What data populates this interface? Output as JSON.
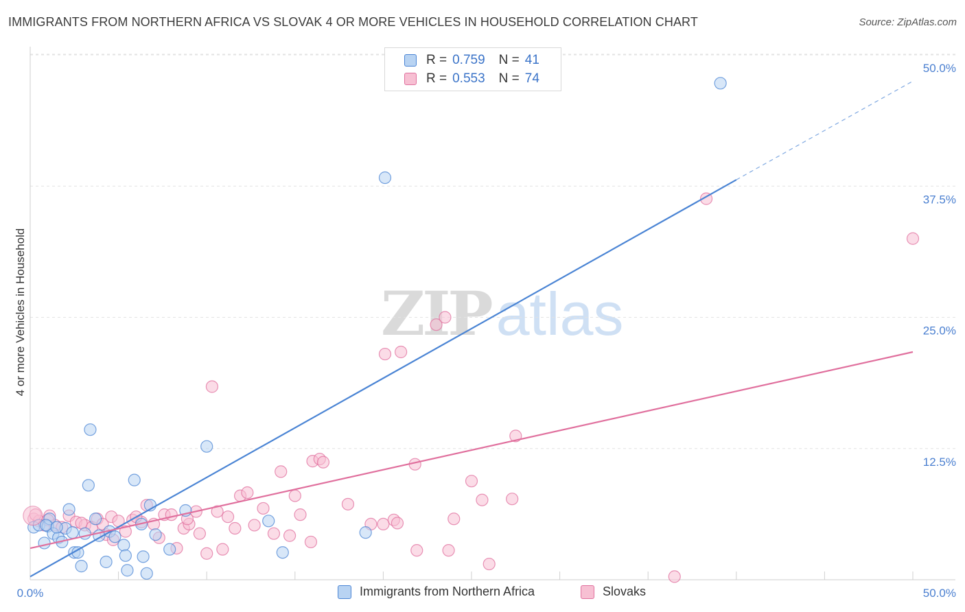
{
  "chart_data": {
    "type": "scatter",
    "title": "IMMIGRANTS FROM NORTHERN AFRICA VS SLOVAK 4 OR MORE VEHICLES IN HOUSEHOLD CORRELATION CHART",
    "source": "Source: ZipAtlas.com",
    "xlabel": "",
    "ylabel": "4 or more Vehicles in Household",
    "xlim": [
      0,
      50
    ],
    "ylim": [
      0,
      50
    ],
    "x_tick_labels": [
      "0.0%",
      "50.0%"
    ],
    "y_ticks": [
      {
        "value": 12.5,
        "label": "12.5%"
      },
      {
        "value": 25.0,
        "label": "25.0%"
      },
      {
        "value": 37.5,
        "label": "37.5%"
      },
      {
        "value": 50.0,
        "label": "50.0%"
      }
    ],
    "legend_position": "top-center",
    "watermark": {
      "zip": "ZIP",
      "atlas": "atlas"
    },
    "series": [
      {
        "name": "Immigrants from Northern Africa",
        "color": "#4a84d4",
        "fill": "#b8d3f2",
        "R": "0.759",
        "N": "41",
        "trend": {
          "x0": 0,
          "y0": 0.3,
          "x1": 40,
          "y1": 38.1,
          "x_dashed_end": 50,
          "y_dashed_end": 47.5
        },
        "points": [
          [
            0.2,
            5.0
          ],
          [
            0.5,
            5.2
          ],
          [
            0.8,
            3.5
          ],
          [
            1.0,
            5.1
          ],
          [
            1.1,
            5.8
          ],
          [
            1.3,
            4.4
          ],
          [
            1.6,
            4.0
          ],
          [
            1.8,
            3.6
          ],
          [
            2.0,
            4.9
          ],
          [
            2.2,
            6.7
          ],
          [
            2.5,
            2.6
          ],
          [
            2.7,
            2.6
          ],
          [
            2.9,
            1.3
          ],
          [
            3.1,
            4.4
          ],
          [
            3.3,
            9.0
          ],
          [
            3.4,
            14.3
          ],
          [
            3.7,
            5.8
          ],
          [
            3.9,
            4.2
          ],
          [
            4.3,
            1.7
          ],
          [
            4.5,
            4.6
          ],
          [
            4.8,
            4.1
          ],
          [
            5.3,
            3.3
          ],
          [
            5.4,
            2.3
          ],
          [
            5.5,
            0.9
          ],
          [
            5.9,
            9.5
          ],
          [
            6.3,
            5.3
          ],
          [
            6.4,
            2.2
          ],
          [
            6.6,
            0.6
          ],
          [
            6.8,
            7.1
          ],
          [
            7.1,
            4.3
          ],
          [
            7.9,
            2.9
          ],
          [
            8.8,
            6.6
          ],
          [
            10.0,
            12.7
          ],
          [
            13.5,
            5.6
          ],
          [
            14.3,
            2.6
          ],
          [
            19.0,
            4.5
          ],
          [
            20.1,
            38.3
          ],
          [
            39.1,
            47.3
          ],
          [
            0.9,
            5.2
          ],
          [
            1.5,
            5.0
          ],
          [
            2.4,
            4.5
          ]
        ]
      },
      {
        "name": "Slovaks",
        "color": "#e06f9d",
        "fill": "#f7c0d3",
        "R": "0.553",
        "N": "74",
        "trend": {
          "x0": 0,
          "y0": 3.0,
          "x1": 50,
          "y1": 21.7
        },
        "points": [
          [
            0.2,
            5.8
          ],
          [
            0.5,
            5.6
          ],
          [
            0.8,
            5.2
          ],
          [
            1.1,
            6.1
          ],
          [
            1.4,
            5.2
          ],
          [
            1.8,
            5.0
          ],
          [
            2.2,
            6.1
          ],
          [
            2.6,
            5.5
          ],
          [
            3.1,
            5.2
          ],
          [
            3.5,
            5.0
          ],
          [
            3.8,
            5.8
          ],
          [
            4.1,
            5.3
          ],
          [
            4.3,
            4.3
          ],
          [
            4.6,
            6.0
          ],
          [
            5.0,
            5.6
          ],
          [
            5.4,
            4.6
          ],
          [
            5.8,
            5.7
          ],
          [
            6.3,
            5.5
          ],
          [
            6.6,
            7.1
          ],
          [
            7.0,
            5.3
          ],
          [
            7.3,
            4.0
          ],
          [
            7.6,
            6.2
          ],
          [
            8.0,
            6.2
          ],
          [
            8.3,
            3.0
          ],
          [
            8.7,
            4.9
          ],
          [
            9.0,
            5.3
          ],
          [
            9.4,
            6.5
          ],
          [
            9.6,
            4.4
          ],
          [
            10.0,
            2.5
          ],
          [
            10.3,
            18.4
          ],
          [
            10.6,
            6.5
          ],
          [
            10.9,
            2.9
          ],
          [
            11.2,
            6.0
          ],
          [
            11.6,
            4.9
          ],
          [
            11.9,
            8.0
          ],
          [
            12.3,
            8.3
          ],
          [
            12.7,
            5.2
          ],
          [
            13.2,
            6.8
          ],
          [
            13.8,
            4.4
          ],
          [
            14.2,
            10.3
          ],
          [
            14.7,
            4.2
          ],
          [
            15.0,
            8.0
          ],
          [
            15.3,
            6.2
          ],
          [
            15.9,
            3.6
          ],
          [
            16.0,
            11.3
          ],
          [
            16.4,
            11.5
          ],
          [
            16.6,
            11.2
          ],
          [
            18.0,
            7.2
          ],
          [
            19.3,
            5.3
          ],
          [
            20.0,
            5.3
          ],
          [
            20.1,
            21.5
          ],
          [
            20.6,
            5.7
          ],
          [
            20.8,
            5.4
          ],
          [
            21.0,
            21.7
          ],
          [
            21.9,
            2.8
          ],
          [
            21.8,
            11.0
          ],
          [
            23.0,
            24.3
          ],
          [
            23.5,
            25.0
          ],
          [
            23.7,
            2.8
          ],
          [
            24.0,
            5.8
          ],
          [
            25.0,
            9.4
          ],
          [
            25.6,
            7.6
          ],
          [
            26.0,
            1.5
          ],
          [
            27.3,
            7.7
          ],
          [
            27.5,
            13.7
          ],
          [
            36.5,
            0.3
          ],
          [
            38.3,
            36.3
          ],
          [
            50.0,
            32.5
          ],
          [
            0.3,
            6.2
          ],
          [
            1.0,
            5.7
          ],
          [
            2.9,
            5.4
          ],
          [
            4.7,
            3.8
          ],
          [
            6.0,
            6.0
          ],
          [
            8.9,
            5.8
          ]
        ]
      }
    ]
  }
}
